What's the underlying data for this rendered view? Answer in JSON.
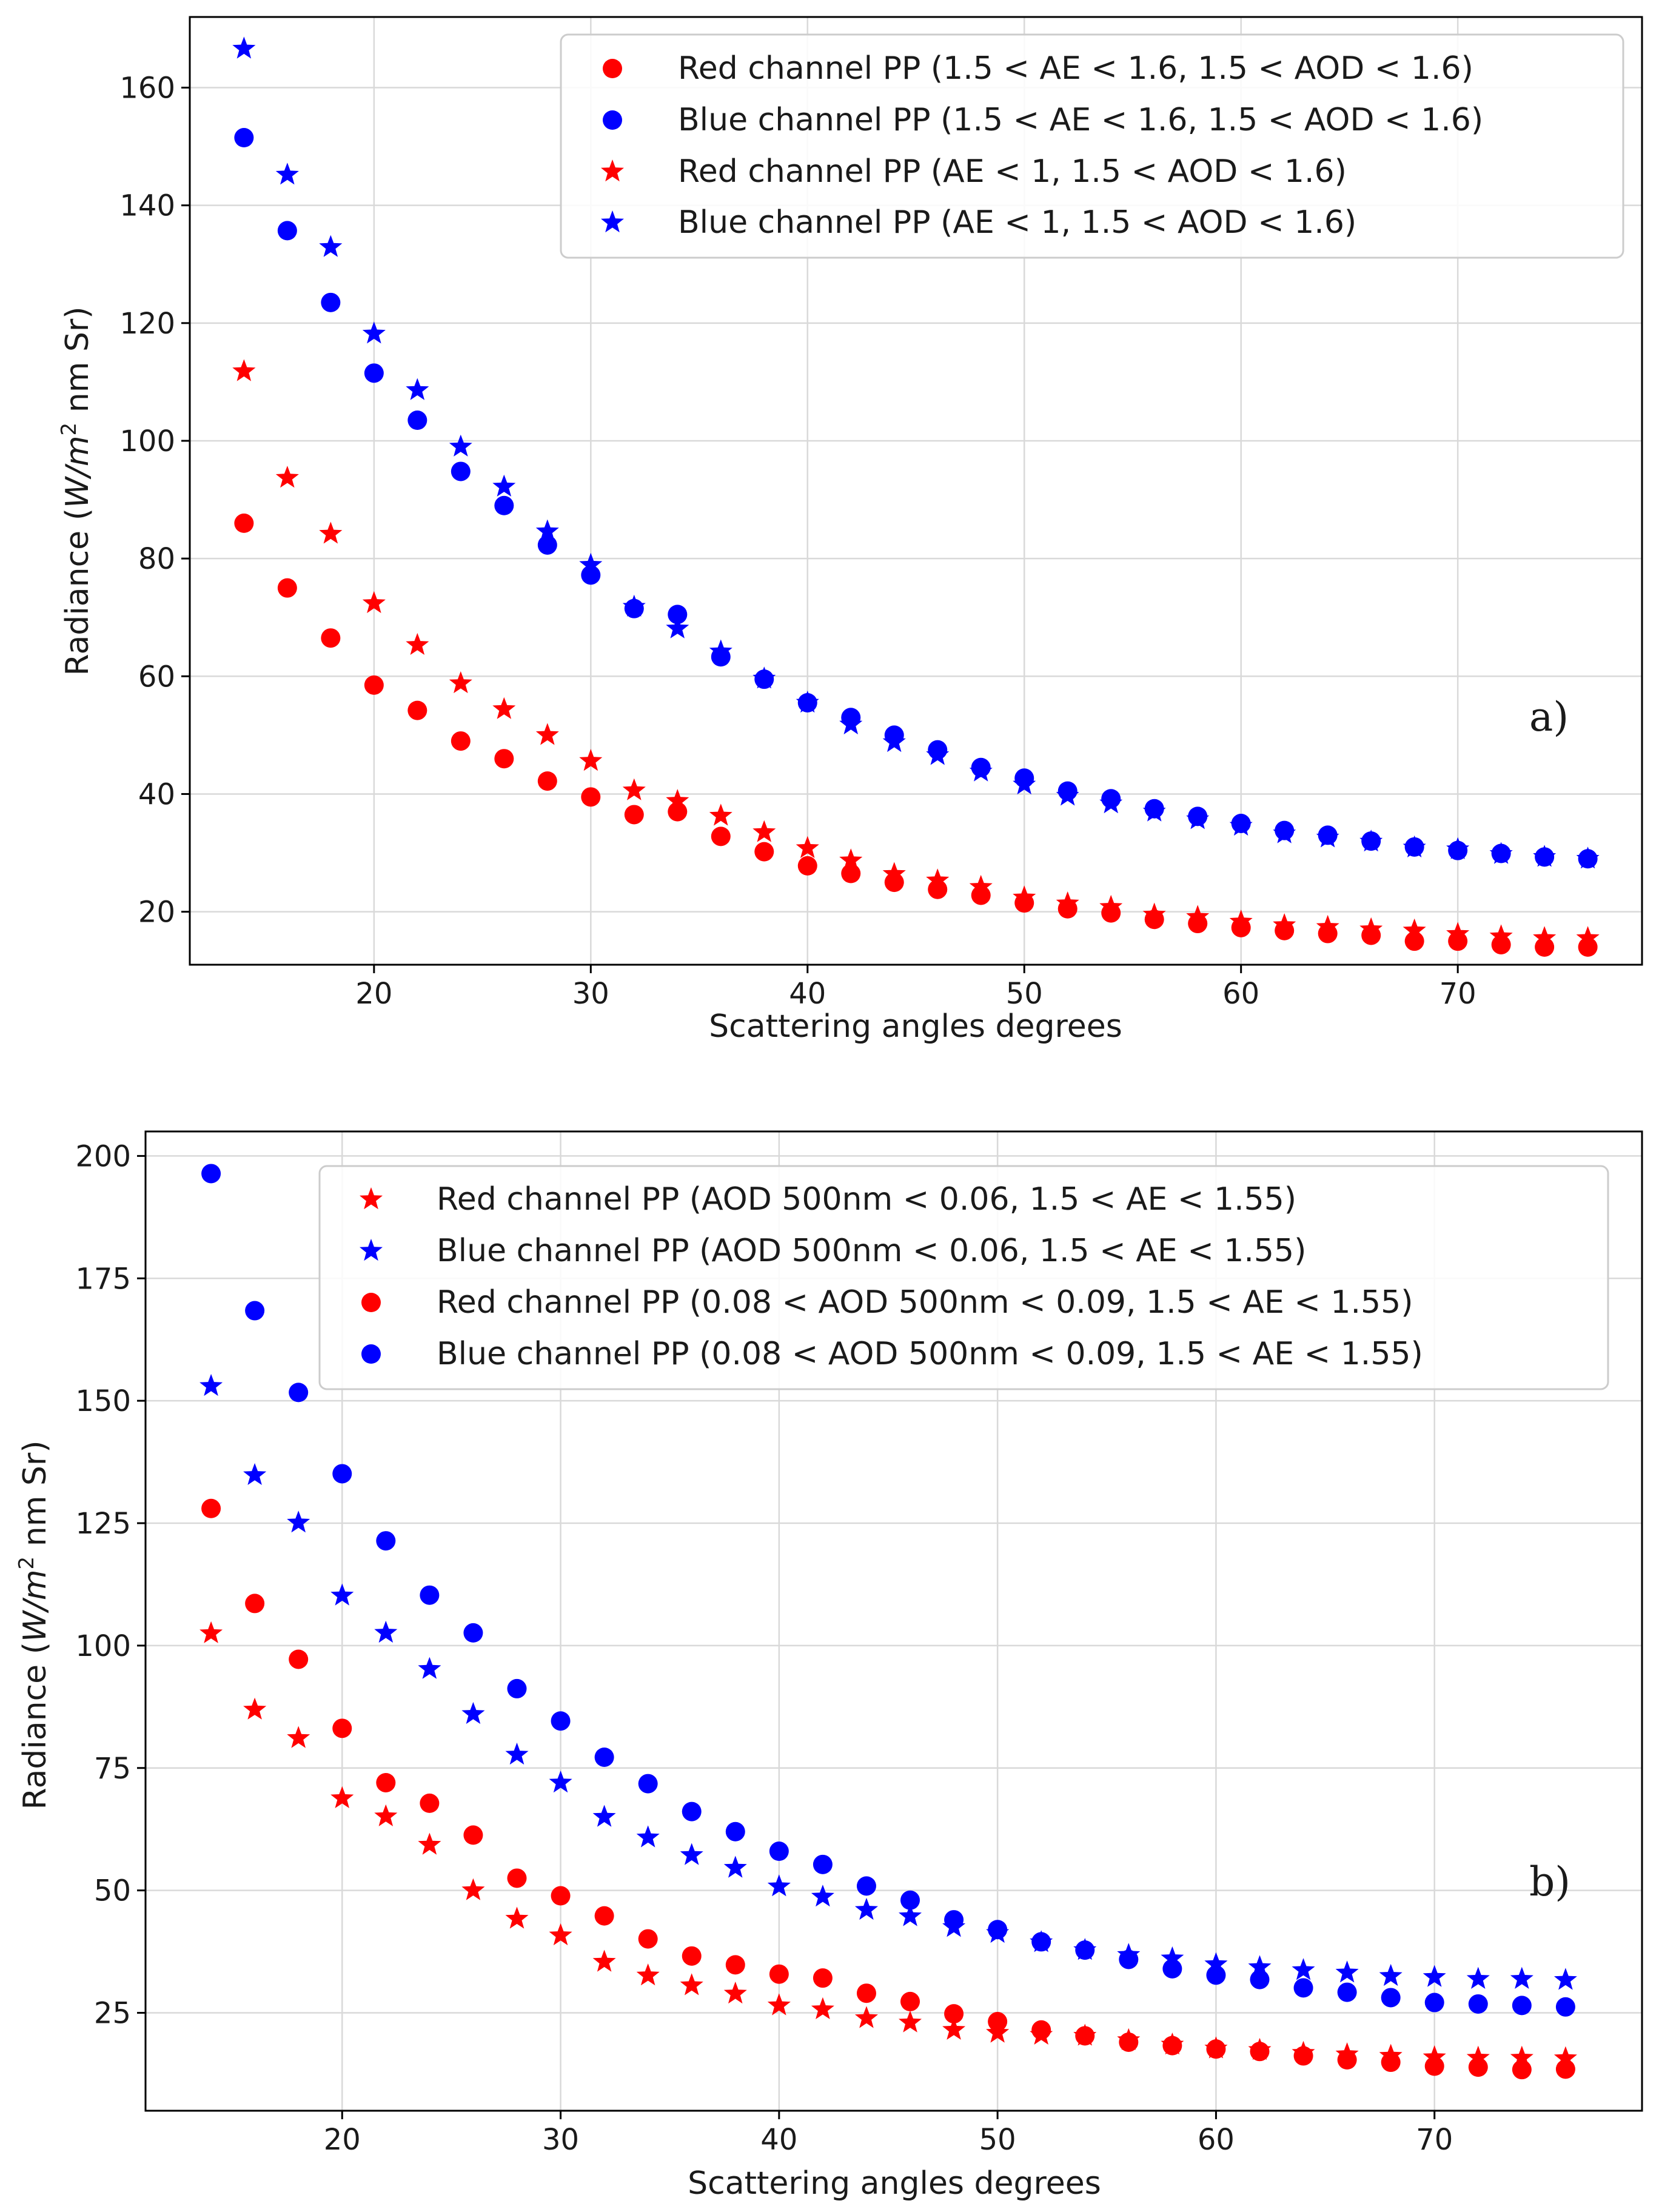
{
  "chart_data": [
    {
      "type": "scatter",
      "xlabel": "Scattering angles degrees",
      "ylabel_parts": [
        "Radiance (",
        "W/m",
        "2",
        " nm Sr)"
      ],
      "panel_label": "a)",
      "xlim": [
        11.5,
        78.5
      ],
      "ylim": [
        11,
        172
      ],
      "xticks": [
        20,
        30,
        40,
        50,
        60,
        70
      ],
      "yticks": [
        20,
        40,
        60,
        80,
        100,
        120,
        140,
        160
      ],
      "grid": true,
      "legend_position": "top-right",
      "x": [
        14,
        16,
        18,
        20,
        22,
        24,
        26,
        28,
        30,
        32,
        34,
        36,
        38,
        40,
        42,
        44,
        46,
        48,
        50,
        52,
        54,
        56,
        58,
        60,
        62,
        64,
        66,
        68,
        70,
        72,
        74,
        76
      ],
      "series": [
        {
          "name": "Red channel PP (1.5 < AE < 1.6, 1.5 < AOD < 1.6)",
          "color": "#ff0000",
          "marker": "circle",
          "values": [
            86,
            75,
            66.5,
            58.5,
            54.2,
            49,
            46,
            42.2,
            39.5,
            36.5,
            37,
            32.8,
            30.2,
            27.8,
            26.5,
            25,
            23.8,
            22.8,
            21.5,
            20.5,
            19.8,
            18.7,
            18,
            17.3,
            16.8,
            16.3,
            16,
            15,
            15,
            14.4,
            14,
            14
          ]
        },
        {
          "name": "Blue channel PP (1.5 < AE < 1.6, 1.5 < AOD < 1.6)",
          "color": "#0000ff",
          "marker": "circle",
          "values": [
            151.5,
            135.7,
            123.5,
            111.5,
            103.5,
            94.8,
            89,
            82.3,
            77.2,
            71.5,
            70.5,
            63.3,
            59.5,
            55.5,
            53,
            50,
            47.5,
            44.5,
            42.7,
            40.5,
            39.2,
            37.5,
            36.2,
            35,
            33.8,
            33,
            32,
            31,
            30.4,
            29.9,
            29.3,
            29
          ]
        },
        {
          "name": "Red channel PP (AE < 1, 1.5 < AOD < 1.6)",
          "color": "#ff0000",
          "marker": "star",
          "values": [
            111.8,
            93.7,
            84.2,
            72.4,
            65.3,
            58.8,
            54.4,
            50,
            45.6,
            40.6,
            38.8,
            36.3,
            33.5,
            30.8,
            28.7,
            26.4,
            25.3,
            24.2,
            22.4,
            21.4,
            20.8,
            19.5,
            19.1,
            18.3,
            17.7,
            17.4,
            17,
            16.8,
            16.2,
            15.8,
            15.5,
            15.5
          ]
        },
        {
          "name": "Blue channel PP (AE < 1, 1.5 < AOD < 1.6)",
          "color": "#0000ff",
          "marker": "star",
          "values": [
            166.6,
            145.2,
            132.9,
            118.2,
            108.6,
            99,
            92.2,
            84.6,
            78.9,
            71.8,
            68.1,
            64.2,
            59.6,
            55.5,
            51.8,
            48.8,
            46.6,
            43.8,
            41.6,
            39.7,
            38.4,
            37,
            35.7,
            34.6,
            33.3,
            32.6,
            31.9,
            30.9,
            30.6,
            29.8,
            29.3,
            29
          ]
        }
      ]
    },
    {
      "type": "scatter",
      "xlabel": "Scattering angles degrees",
      "ylabel_parts": [
        "Radiance (",
        "W/m",
        "2",
        " nm Sr)"
      ],
      "panel_label": "b)",
      "xlim": [
        11,
        79.5
      ],
      "ylim": [
        5,
        205
      ],
      "xticks": [
        20,
        30,
        40,
        50,
        60,
        70
      ],
      "yticks": [
        25,
        50,
        75,
        100,
        125,
        150,
        175,
        200
      ],
      "grid": true,
      "legend_position": "top-right",
      "x": [
        14,
        16,
        18,
        20,
        22,
        24,
        26,
        28,
        30,
        32,
        34,
        36,
        38,
        40,
        42,
        44,
        46,
        48,
        50,
        52,
        54,
        56,
        58,
        60,
        62,
        64,
        66,
        68,
        70,
        72,
        74,
        76
      ],
      "series": [
        {
          "name": "Red channel PP (AOD 500nm < 0.06, 1.5 < AE < 1.55)",
          "color": "#ff0000",
          "marker": "star",
          "values": [
            102.5,
            86.9,
            81.1,
            68.8,
            65.1,
            59.3,
            50,
            44.2,
            40.8,
            35.4,
            32.6,
            30.6,
            28.9,
            26.5,
            25.7,
            23.9,
            23,
            21.5,
            20.9,
            20.5,
            20.3,
            19.4,
            18.5,
            17.7,
            17.4,
            16.8,
            16.5,
            16.2,
            15.9,
            15.8,
            15.8,
            15.7
          ]
        },
        {
          "name": "Blue channel PP (AOD 500nm < 0.06, 1.5 < AE < 1.55)",
          "color": "#0000ff",
          "marker": "star",
          "values": [
            153,
            134.8,
            125.1,
            110.2,
            102.6,
            95.2,
            86,
            77.7,
            72,
            65,
            60.8,
            57.2,
            54.6,
            50.8,
            48.7,
            46,
            44.7,
            42.5,
            41.3,
            39.4,
            37.8,
            36.8,
            36.1,
            34.9,
            34.3,
            33.7,
            33.2,
            32.5,
            32.3,
            31.9,
            31.9,
            31.7
          ]
        },
        {
          "name": "Red channel PP (0.08 < AOD 500nm < 0.09, 1.5 < AE < 1.55)",
          "color": "#ff0000",
          "marker": "circle",
          "values": [
            128,
            108.6,
            97.2,
            83.1,
            72,
            67.8,
            61.3,
            52.5,
            48.9,
            44.8,
            40.1,
            36.6,
            34.8,
            32.9,
            32.1,
            29,
            27.3,
            24.8,
            23.2,
            21.5,
            20.3,
            19,
            18.3,
            17.6,
            17.1,
            16.2,
            15.4,
            14.9,
            14.1,
            13.9,
            13.4,
            13.5
          ]
        },
        {
          "name": "Blue channel PP (0.08 < AOD 500nm < 0.09, 1.5 < AE < 1.55)",
          "color": "#0000ff",
          "marker": "circle",
          "values": [
            196.4,
            168.4,
            151.7,
            135.1,
            121.4,
            110.3,
            102.6,
            91.2,
            84.6,
            77.2,
            71.8,
            66.1,
            62,
            58,
            55.3,
            50.9,
            48,
            44,
            42,
            39.5,
            37.8,
            35.9,
            34,
            32.7,
            31.8,
            30.1,
            29.2,
            28.1,
            27.1,
            26.8,
            26.5,
            26.2
          ]
        }
      ]
    }
  ]
}
